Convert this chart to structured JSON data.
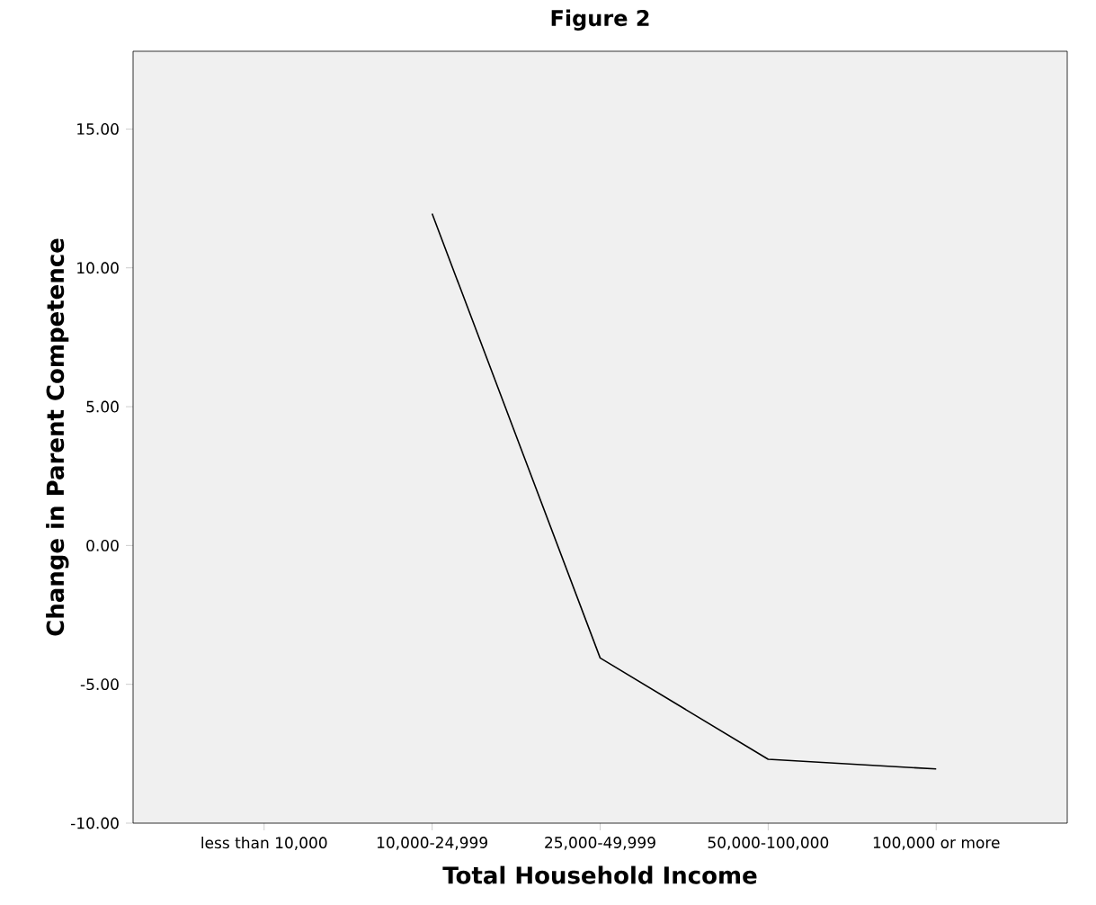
{
  "chart_data": {
    "type": "line",
    "title": "Figure 2",
    "xlabel": "Total Household Income",
    "ylabel": "Change in Parent Competence",
    "categories": [
      "less than 10,000",
      "10,000-24,999",
      "25,000-49,999",
      "50,000-100,000",
      "100,000 or more"
    ],
    "series": [
      {
        "color": "#000000",
        "values": [
          null,
          11.95,
          -4.05,
          -7.7,
          -8.05
        ]
      }
    ],
    "ylim": [
      -10,
      17.8
    ],
    "yticks": [
      {
        "value": -10,
        "label": "-10.00"
      },
      {
        "value": -5,
        "label": "-5.00"
      },
      {
        "value": 0,
        "label": "0.00"
      },
      {
        "value": 5,
        "label": "5.00"
      },
      {
        "value": 10,
        "label": "10.00"
      },
      {
        "value": 15,
        "label": "15.00"
      }
    ],
    "grid": false,
    "marker": "none",
    "line_style": "solid"
  }
}
